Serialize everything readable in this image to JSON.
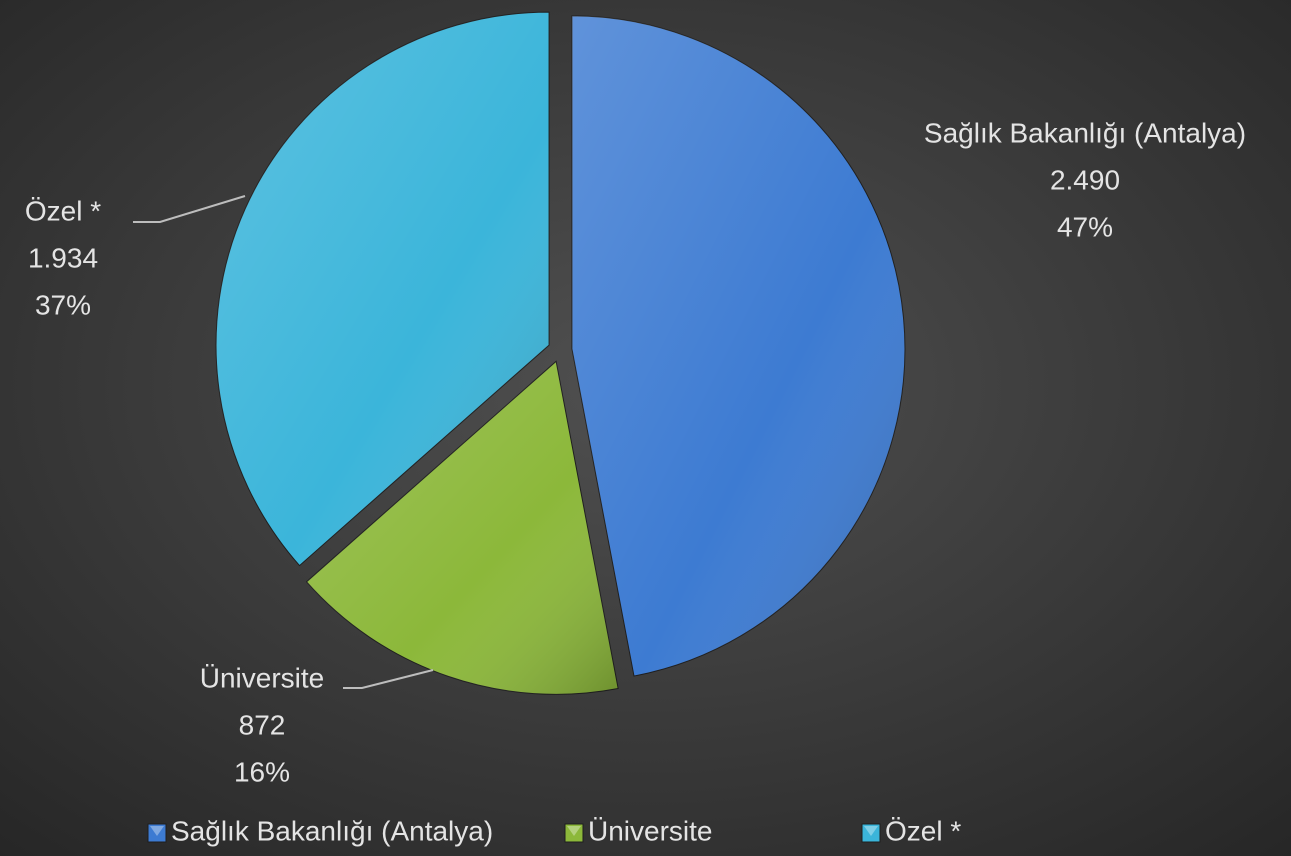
{
  "chart_data": {
    "type": "pie",
    "categories": [
      "Sağlık Bakanlığı (Antalya)",
      "Üniversite",
      "Özel *"
    ],
    "values": [
      2490,
      872,
      1934
    ],
    "value_labels": [
      "2.490",
      "872",
      "1.934"
    ],
    "percent_labels": [
      "47%",
      "16%",
      "37%"
    ],
    "colors": [
      "#3d7bd2",
      "#8cb83a",
      "#3bb5da"
    ],
    "legend": "bottom"
  }
}
